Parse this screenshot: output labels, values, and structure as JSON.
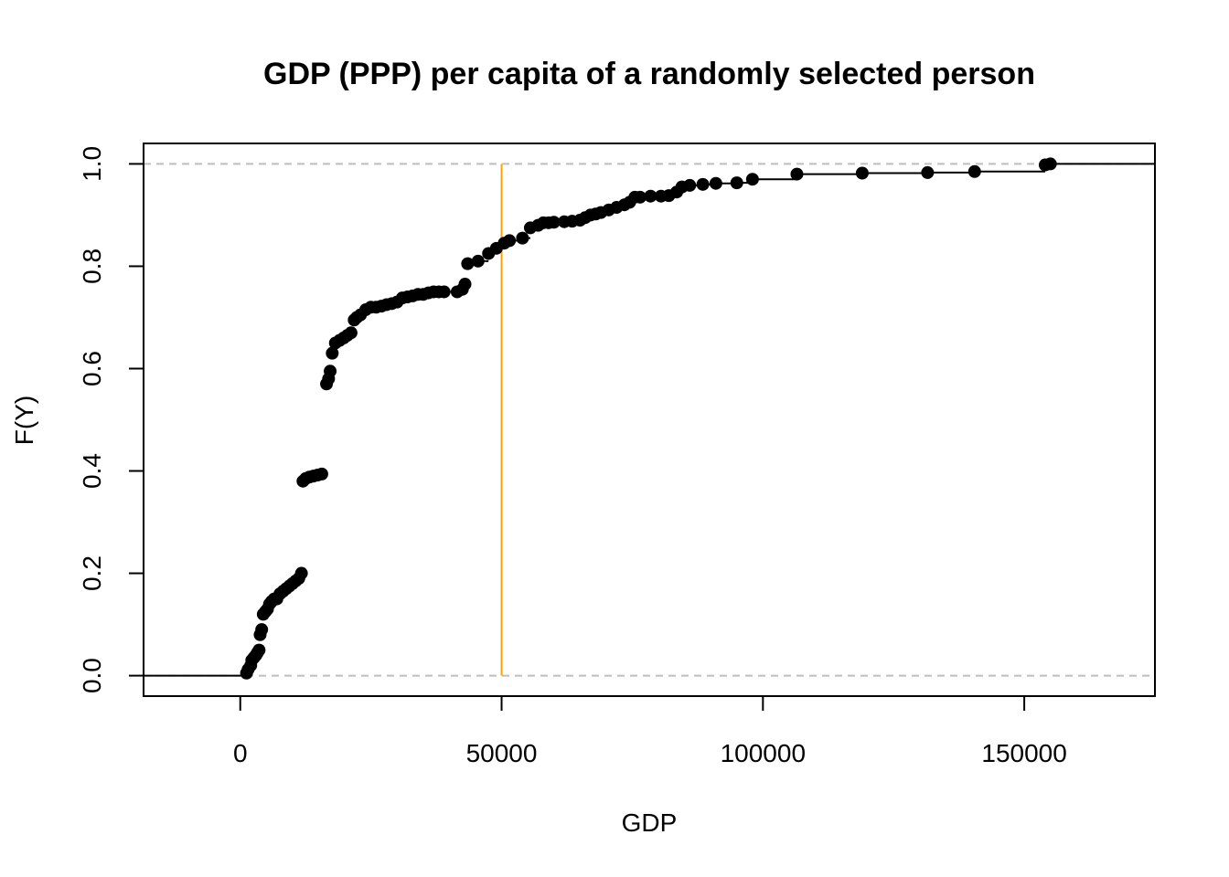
{
  "chart_data": {
    "type": "line",
    "title": "GDP (PPP) per capita of a randomly selected person",
    "xlabel": "GDP",
    "ylabel": "F(Y)",
    "xlim": [
      -18500,
      175000
    ],
    "ylim": [
      -0.04,
      1.04
    ],
    "x_ticks": [
      0,
      50000,
      100000,
      150000
    ],
    "y_ticks": [
      0.0,
      0.2,
      0.4,
      0.6,
      0.8,
      1.0
    ],
    "x_tick_labels": [
      "0",
      "50000",
      "100000",
      "150000"
    ],
    "y_tick_labels": [
      "0.0",
      "0.2",
      "0.4",
      "0.6",
      "0.8",
      "1.0"
    ],
    "grid": false,
    "reference_lines": [
      {
        "orientation": "horizontal",
        "y": 0.0,
        "style": "dashed",
        "color": "#bebebe"
      },
      {
        "orientation": "horizontal",
        "y": 1.0,
        "style": "dashed",
        "color": "#bebebe"
      },
      {
        "orientation": "vertical",
        "x": 50000,
        "y_from": 0.0,
        "y_to": 1.0,
        "style": "solid",
        "color": "#FFA500"
      }
    ],
    "series": [
      {
        "points": [
          [
            1200,
            0.005
          ],
          [
            1500,
            0.012
          ],
          [
            2000,
            0.02
          ],
          [
            2200,
            0.03
          ],
          [
            2600,
            0.035
          ],
          [
            3000,
            0.04
          ],
          [
            3300,
            0.045
          ],
          [
            3600,
            0.05
          ],
          [
            3800,
            0.08
          ],
          [
            4100,
            0.09
          ],
          [
            4400,
            0.12
          ],
          [
            4800,
            0.125
          ],
          [
            5200,
            0.13
          ],
          [
            5600,
            0.14
          ],
          [
            6000,
            0.145
          ],
          [
            6500,
            0.15
          ],
          [
            7000,
            0.15
          ],
          [
            7600,
            0.16
          ],
          [
            8200,
            0.165
          ],
          [
            8800,
            0.17
          ],
          [
            9400,
            0.175
          ],
          [
            10000,
            0.18
          ],
          [
            10600,
            0.185
          ],
          [
            11200,
            0.19
          ],
          [
            11700,
            0.2
          ],
          [
            12000,
            0.38
          ],
          [
            12500,
            0.385
          ],
          [
            13200,
            0.388
          ],
          [
            14000,
            0.39
          ],
          [
            14800,
            0.392
          ],
          [
            15600,
            0.394
          ],
          [
            16500,
            0.57
          ],
          [
            16900,
            0.58
          ],
          [
            17200,
            0.595
          ],
          [
            17600,
            0.63
          ],
          [
            18200,
            0.65
          ],
          [
            19000,
            0.655
          ],
          [
            19800,
            0.66
          ],
          [
            20500,
            0.665
          ],
          [
            21200,
            0.67
          ],
          [
            21800,
            0.695
          ],
          [
            22300,
            0.7
          ],
          [
            23000,
            0.705
          ],
          [
            24000,
            0.715
          ],
          [
            25000,
            0.72
          ],
          [
            26000,
            0.72
          ],
          [
            27000,
            0.722
          ],
          [
            28000,
            0.725
          ],
          [
            29000,
            0.727
          ],
          [
            30000,
            0.73
          ],
          [
            31000,
            0.738
          ],
          [
            32000,
            0.74
          ],
          [
            33000,
            0.742
          ],
          [
            34000,
            0.745
          ],
          [
            35000,
            0.745
          ],
          [
            36000,
            0.748
          ],
          [
            37000,
            0.75
          ],
          [
            38000,
            0.75
          ],
          [
            39000,
            0.75
          ],
          [
            41500,
            0.75
          ],
          [
            42500,
            0.755
          ],
          [
            43000,
            0.765
          ],
          [
            43500,
            0.805
          ],
          [
            45500,
            0.81
          ],
          [
            47500,
            0.825
          ],
          [
            49000,
            0.835
          ],
          [
            50500,
            0.845
          ],
          [
            51500,
            0.85
          ],
          [
            54000,
            0.855
          ],
          [
            55500,
            0.875
          ],
          [
            57000,
            0.88
          ],
          [
            58000,
            0.885
          ],
          [
            59000,
            0.885
          ],
          [
            60000,
            0.886
          ],
          [
            62000,
            0.887
          ],
          [
            63500,
            0.888
          ],
          [
            65000,
            0.89
          ],
          [
            66000,
            0.895
          ],
          [
            67000,
            0.9
          ],
          [
            68000,
            0.902
          ],
          [
            69000,
            0.905
          ],
          [
            70500,
            0.91
          ],
          [
            72000,
            0.915
          ],
          [
            73500,
            0.92
          ],
          [
            74500,
            0.925
          ],
          [
            75500,
            0.935
          ],
          [
            76500,
            0.935
          ],
          [
            78500,
            0.937
          ],
          [
            80500,
            0.937
          ],
          [
            82000,
            0.938
          ],
          [
            83500,
            0.945
          ],
          [
            84500,
            0.955
          ],
          [
            86000,
            0.958
          ],
          [
            88500,
            0.96
          ],
          [
            91000,
            0.962
          ],
          [
            95000,
            0.963
          ],
          [
            98000,
            0.97
          ],
          [
            106500,
            0.98
          ],
          [
            119000,
            0.982
          ],
          [
            131500,
            0.983
          ],
          [
            140500,
            0.985
          ],
          [
            154000,
            0.998
          ],
          [
            155000,
            1.0
          ]
        ]
      }
    ]
  }
}
